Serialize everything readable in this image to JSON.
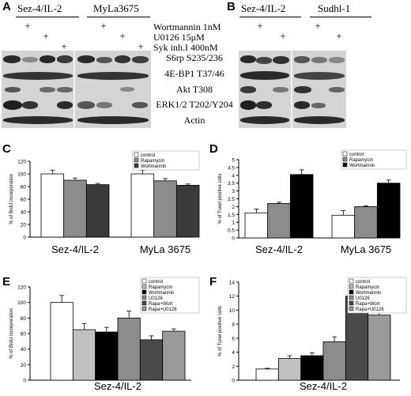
{
  "panels": {
    "A": {
      "letter": "A",
      "groups": [
        "Sez-4/IL-2",
        "MyLa3675"
      ],
      "treatments": [
        "Wortmannin 1nM",
        "U0126 15μM",
        "Syk inh.I 400nM"
      ],
      "plus_symbol": "+",
      "blot_labels": [
        "S6rp S235/236",
        "4E-BP1 T37/46",
        "Akt T308",
        "ERK1/2 T202/Y204",
        "Actin"
      ]
    },
    "B": {
      "letter": "B",
      "groups": [
        "Sez-4/IL-2",
        "Sudhl-1"
      ],
      "plus_symbol": "+"
    }
  },
  "chart_data": [
    {
      "panel": "C",
      "type": "bar",
      "categories": [
        "Sez-4/IL-2",
        "MyLa 3675"
      ],
      "ylabel": "% of BrdU incorporation",
      "ylim": [
        0,
        120
      ],
      "yticks": [
        "0",
        "20",
        "40",
        "60",
        "80",
        "100",
        "120"
      ],
      "series": [
        {
          "name": "control",
          "values": [
            100,
            100
          ],
          "errors": [
            6,
            6
          ],
          "color": "#ffffff"
        },
        {
          "name": "Rapamycin",
          "values": [
            90,
            89
          ],
          "errors": [
            3.5,
            3.5
          ],
          "color": "#8c8c8c"
        },
        {
          "name": "Wortmannin",
          "values": [
            83,
            82
          ],
          "errors": [
            2,
            2
          ],
          "color": "#3a3a3a"
        }
      ],
      "legend_position": "top-right",
      "grid": false
    },
    {
      "panel": "D",
      "type": "bar",
      "categories": [
        "Sez-4/IL-2",
        "MyLa 3675"
      ],
      "ylabel": "% of Tunel positive cells",
      "ylim": [
        0,
        5
      ],
      "yticks": [
        "0",
        "0.5",
        "1",
        "1.5",
        "2",
        "2.5",
        "3",
        "3.5",
        "4",
        "4.5",
        "5"
      ],
      "series": [
        {
          "name": "control",
          "values": [
            1.6,
            1.45
          ],
          "errors": [
            0.25,
            0.3
          ],
          "color": "#ffffff"
        },
        {
          "name": "Rapamycin",
          "values": [
            2.2,
            2.0
          ],
          "errors": [
            0.08,
            0.05
          ],
          "color": "#8c8c8c"
        },
        {
          "name": "Wortmannin",
          "values": [
            4.05,
            3.5
          ],
          "errors": [
            0.3,
            0.2
          ],
          "color": "#000000"
        }
      ],
      "legend_position": "top-right",
      "grid": false
    },
    {
      "panel": "E",
      "type": "bar",
      "categories": [
        "Sez-4/IL-2"
      ],
      "ylabel": "% of BrdU incorporation",
      "ylim": [
        0,
        120
      ],
      "yticks": [
        "0",
        "20",
        "40",
        "60",
        "80",
        "100",
        "120"
      ],
      "series": [
        {
          "name": "control",
          "values": [
            100
          ],
          "errors": [
            9
          ],
          "color": "#ffffff"
        },
        {
          "name": "Rapamycin",
          "values": [
            65
          ],
          "errors": [
            8
          ],
          "color": "#c0c0c0"
        },
        {
          "name": "Wortmannin",
          "values": [
            62
          ],
          "errors": [
            6
          ],
          "color": "#000000"
        },
        {
          "name": "U0126",
          "values": [
            80
          ],
          "errors": [
            9
          ],
          "color": "#8c8c8c"
        },
        {
          "name": "Rapa+Wort",
          "values": [
            52
          ],
          "errors": [
            5
          ],
          "color": "#4a4a4a"
        },
        {
          "name": "Rapa+U0126",
          "values": [
            63
          ],
          "errors": [
            3
          ],
          "color": "#9a9a9a"
        }
      ],
      "legend_position": "top-right",
      "grid": false
    },
    {
      "panel": "F",
      "type": "bar",
      "categories": [
        "Sez-4/IL-2"
      ],
      "ylabel": "% of Tunel positive cells",
      "ylim": [
        0,
        14
      ],
      "yticks": [
        "0",
        "2",
        "4",
        "6",
        "8",
        "10",
        "12",
        "14"
      ],
      "series": [
        {
          "name": "control",
          "values": [
            1.6
          ],
          "errors": [
            0.1
          ],
          "color": "#ffffff"
        },
        {
          "name": "Rapamycin",
          "values": [
            3.1
          ],
          "errors": [
            0.4
          ],
          "color": "#c0c0c0"
        },
        {
          "name": "Wortmannin",
          "values": [
            3.5
          ],
          "errors": [
            0.4
          ],
          "color": "#000000"
        },
        {
          "name": "U0126",
          "values": [
            5.5
          ],
          "errors": [
            0.7
          ],
          "color": "#8c8c8c"
        },
        {
          "name": "Rapa+Wort",
          "values": [
            12
          ],
          "errors": [
            1.4
          ],
          "color": "#4a4a4a"
        },
        {
          "name": "Rapa+U0126",
          "values": [
            9.3
          ],
          "errors": [
            0.8
          ],
          "color": "#9a9a9a"
        }
      ],
      "legend_position": "top-right",
      "grid": false
    }
  ]
}
